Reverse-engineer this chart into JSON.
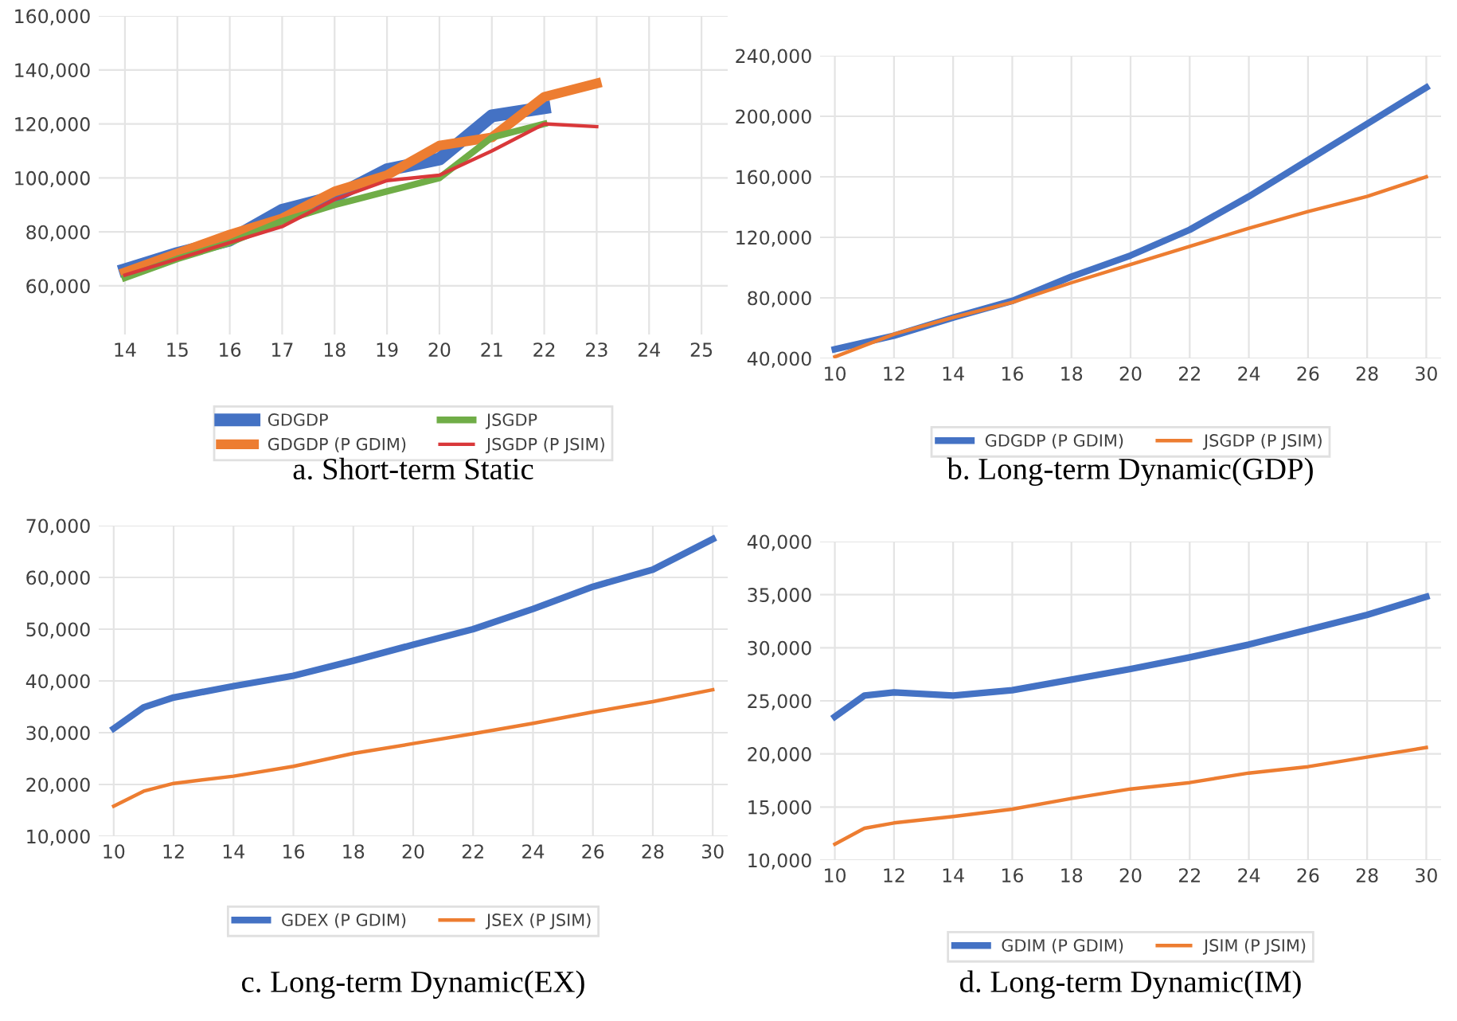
{
  "chart_data": [
    {
      "type": "line",
      "title": "a. Short-term Static",
      "x": [
        14,
        15,
        16,
        17,
        18,
        19,
        20,
        21,
        22,
        23
      ],
      "xlim": [
        13.5,
        25.5
      ],
      "xticks": [
        14,
        15,
        16,
        17,
        18,
        19,
        20,
        21,
        22,
        23,
        24,
        25
      ],
      "ylim": [
        42000,
        160000
      ],
      "yticks": [
        {
          "value": 60000,
          "label": "60,000"
        },
        {
          "value": 80000,
          "label": "80,000"
        },
        {
          "value": 100000,
          "label": "100,000"
        },
        {
          "value": 120000,
          "label": "120,000"
        },
        {
          "value": 140000,
          "label": "140,000"
        },
        {
          "value": 160000,
          "label": "160,000"
        }
      ],
      "grid": true,
      "legend": "bottom",
      "series": [
        {
          "name": "GDGDP",
          "color": "#4472c4",
          "values": [
            66000,
            72000,
            77000,
            88000,
            93000,
            103000,
            107000,
            123000,
            126000,
            null
          ]
        },
        {
          "name": "GDGDP (P GDIM)",
          "color": "#ed7d31",
          "values": [
            65000,
            72000,
            79000,
            85000,
            95000,
            101000,
            112000,
            115000,
            130000,
            135000
          ]
        },
        {
          "name": "JSGDP",
          "color": "#70ad47",
          "values": [
            63000,
            70000,
            76000,
            84000,
            90000,
            95000,
            100000,
            115000,
            120000,
            null
          ]
        },
        {
          "name": "JSGDP (P JSIM)",
          "color": "#d9383a",
          "values": [
            64000,
            70000,
            76000,
            82000,
            92000,
            99000,
            101000,
            110000,
            120000,
            119000
          ]
        }
      ]
    },
    {
      "type": "line",
      "title": "b. Long-term Dynamic(GDP)",
      "x": [
        10,
        12,
        14,
        16,
        18,
        20,
        22,
        24,
        26,
        28,
        30
      ],
      "xlim": [
        9.5,
        30.5
      ],
      "xticks": [
        10,
        12,
        14,
        16,
        18,
        20,
        22,
        24,
        26,
        28,
        30
      ],
      "ylim": [
        40000,
        240000
      ],
      "yticks": [
        {
          "value": 40000,
          "label": "40,000"
        },
        {
          "value": 80000,
          "label": "80,000"
        },
        {
          "value": 120000,
          "label": "120,000"
        },
        {
          "value": 160000,
          "label": "160,000"
        },
        {
          "value": 200000,
          "label": "200,000"
        },
        {
          "value": 240000,
          "label": "240,000"
        }
      ],
      "grid": true,
      "legend": "bottom",
      "series": [
        {
          "name": "GDGDP (P GDIM)",
          "color": "#4472c4",
          "values": [
            46000,
            55000,
            67000,
            78000,
            94000,
            108000,
            125000,
            147000,
            171000,
            195000,
            219000
          ]
        },
        {
          "name": "JSGDP (P JSIM)",
          "color": "#ed7d31",
          "values": [
            41000,
            56000,
            67000,
            77000,
            90000,
            102000,
            114000,
            126000,
            137000,
            147000,
            160000
          ]
        }
      ]
    },
    {
      "type": "line",
      "title": "c. Long-term Dynamic(EX)",
      "x": [
        10,
        11,
        12,
        14,
        16,
        18,
        20,
        22,
        24,
        26,
        28,
        30
      ],
      "xlim": [
        9.5,
        30.5
      ],
      "xticks": [
        10,
        12,
        14,
        16,
        18,
        20,
        22,
        24,
        26,
        28,
        30
      ],
      "ylim": [
        10000,
        70000
      ],
      "yticks": [
        {
          "value": 10000,
          "label": "10,000"
        },
        {
          "value": 20000,
          "label": "20,000"
        },
        {
          "value": 30000,
          "label": "30,000"
        },
        {
          "value": 40000,
          "label": "40,000"
        },
        {
          "value": 50000,
          "label": "50,000"
        },
        {
          "value": 60000,
          "label": "60,000"
        },
        {
          "value": 70000,
          "label": "70,000"
        }
      ],
      "grid": true,
      "legend": "bottom",
      "series": [
        {
          "name": "GDEX (P GDIM)",
          "color": "#4472c4",
          "values": [
            30800,
            34900,
            36800,
            39000,
            41000,
            43900,
            47000,
            50000,
            53900,
            58200,
            61500,
            67400
          ]
        },
        {
          "name": "JSEX (P JSIM)",
          "color": "#ed7d31",
          "values": [
            15800,
            18700,
            20200,
            21600,
            23500,
            26000,
            27900,
            29800,
            31800,
            34000,
            36000,
            38300
          ]
        }
      ]
    },
    {
      "type": "line",
      "title": "d. Long-term Dynamic(IM)",
      "x": [
        10,
        11,
        12,
        14,
        16,
        18,
        20,
        22,
        24,
        26,
        28,
        30
      ],
      "xlim": [
        9.5,
        30.5
      ],
      "xticks": [
        10,
        12,
        14,
        16,
        18,
        20,
        22,
        24,
        26,
        28,
        30
      ],
      "ylim": [
        10000,
        40000
      ],
      "yticks": [
        {
          "value": 10000,
          "label": "10,000"
        },
        {
          "value": 15000,
          "label": "15,000"
        },
        {
          "value": 20000,
          "label": "20,000"
        },
        {
          "value": 25000,
          "label": "25,000"
        },
        {
          "value": 30000,
          "label": "30,000"
        },
        {
          "value": 35000,
          "label": "35,000"
        },
        {
          "value": 40000,
          "label": "40,000"
        }
      ],
      "grid": true,
      "legend": "bottom",
      "series": [
        {
          "name": "GDIM (P GDIM)",
          "color": "#4472c4",
          "values": [
            23500,
            25500,
            25800,
            25500,
            26000,
            27000,
            28000,
            29100,
            30300,
            31700,
            33100,
            34800
          ]
        },
        {
          "name": "JSIM (P JSIM)",
          "color": "#ed7d31",
          "values": [
            11500,
            13000,
            13500,
            14100,
            14800,
            15800,
            16700,
            17300,
            18200,
            18800,
            19700,
            20600
          ]
        }
      ]
    }
  ]
}
